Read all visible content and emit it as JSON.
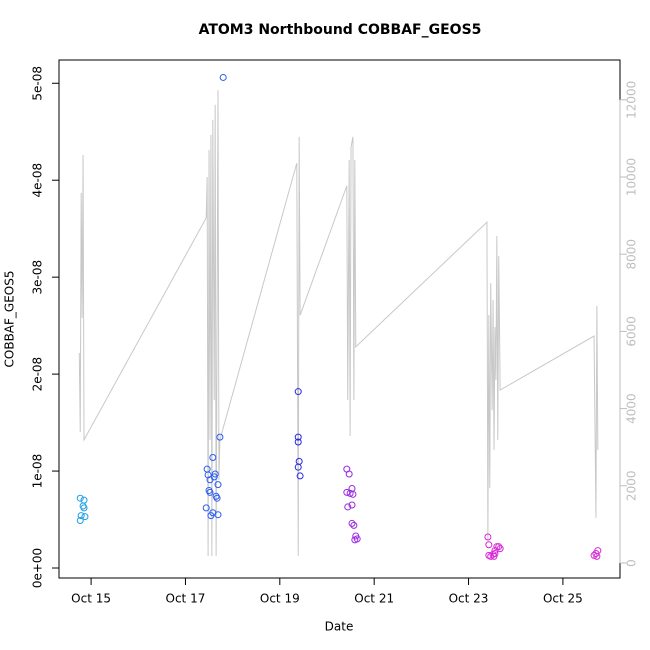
{
  "chart_data": {
    "type": "scatter",
    "title": "ATOM3 Northbound COBBAF_GEOS5",
    "xlabel": "Date",
    "ylabel": "COBBAF_GEOS5",
    "xlim": [
      14.32,
      26.21
    ],
    "xticks": [
      {
        "value": 15,
        "label": "Oct 15"
      },
      {
        "value": 17,
        "label": "Oct 17"
      },
      {
        "value": 19,
        "label": "Oct 19"
      },
      {
        "value": 21,
        "label": "Oct 21"
      },
      {
        "value": 23,
        "label": "Oct 23"
      },
      {
        "value": 25,
        "label": "Oct 25"
      }
    ],
    "ylim": [
      -1.03e-09,
      5.24e-08
    ],
    "yticks": [
      {
        "value": 0,
        "label": "0e+00"
      },
      {
        "value": 1e-08,
        "label": "1e-08"
      },
      {
        "value": 2e-08,
        "label": "2e-08"
      },
      {
        "value": 3e-08,
        "label": "3e-08"
      },
      {
        "value": 4e-08,
        "label": "4e-08"
      },
      {
        "value": 5e-08,
        "label": "5e-08"
      }
    ],
    "y2lim": [
      -389,
      13031
    ],
    "y2ticks": [
      0,
      2000,
      4000,
      6000,
      8000,
      10000,
      12000
    ],
    "y2color": "#bebebe",
    "series": [
      {
        "type": "line",
        "axis": "y2",
        "color": "#c8c8c8",
        "x": [
          14.75,
          14.77,
          14.79,
          14.81,
          14.83,
          14.85,
          17.44,
          17.46,
          17.48,
          17.5,
          17.52,
          17.54,
          17.56,
          17.58,
          17.61,
          17.63,
          17.65,
          17.69,
          17.71,
          17.73,
          19.36,
          19.39,
          19.41,
          19.43,
          20.42,
          20.44,
          20.47,
          20.49,
          20.51,
          20.55,
          20.57,
          20.59,
          20.61,
          23.39,
          23.41,
          23.43,
          23.45,
          23.47,
          23.5,
          23.52,
          23.54,
          23.56,
          23.58,
          23.6,
          23.62,
          23.64,
          23.67,
          25.66,
          25.7,
          25.72,
          25.74
        ],
        "values": [
          5440,
          3390,
          9590,
          6350,
          10570,
          3190,
          8940,
          10000,
          180,
          10700,
          3190,
          11090,
          180,
          11480,
          4220,
          11870,
          180,
          12250,
          2150,
          3190,
          10360,
          180,
          11040,
          6420,
          9770,
          4220,
          10440,
          3290,
          10780,
          11040,
          4220,
          10440,
          5600,
          8830,
          600,
          6420,
          1940,
          7250,
          3960,
          6810,
          2930,
          6110,
          4740,
          8470,
          3190,
          7950,
          4480,
          5880,
          1170,
          6660,
          2930
        ]
      },
      {
        "color": "#1ea0e6",
        "x": [
          14.77,
          14.79,
          14.83,
          14.85,
          14.87,
          14.77,
          14.85
        ],
        "values": [
          7.2e-09,
          5.4e-09,
          6.4e-09,
          7e-09,
          5.3e-09,
          4.9e-09,
          6.2e-09
        ]
      },
      {
        "color": "#2a5cf0",
        "x": [
          17.46,
          17.48,
          17.52,
          17.58,
          17.61,
          17.63,
          17.65,
          17.67,
          17.69,
          17.73,
          17.8,
          17.44,
          17.54,
          17.58,
          17.69,
          17.52,
          17.5
        ],
        "values": [
          1.02e-08,
          9.6e-09,
          9.1e-09,
          1.14e-08,
          9.4e-09,
          9.7e-09,
          7.4e-09,
          7.2e-09,
          8.6e-09,
          1.35e-08,
          5.06e-08,
          6.2e-09,
          5.4e-09,
          5.7e-09,
          5.5e-09,
          7.8e-09,
          8e-09
        ]
      },
      {
        "color": "#2828e0",
        "x": [
          19.39,
          19.39,
          19.39,
          19.41,
          19.39,
          19.43
        ],
        "values": [
          1.82e-08,
          1.35e-08,
          1.3e-08,
          1.1e-08,
          1.04e-08,
          9.5e-09
        ]
      },
      {
        "color": "#9a28e0",
        "x": [
          20.42,
          20.47,
          20.42,
          20.49,
          20.53,
          20.55,
          20.44,
          20.53,
          20.53,
          20.57,
          20.61,
          20.64,
          20.59
        ],
        "values": [
          1.02e-08,
          9.7e-09,
          7.8e-09,
          7.7e-09,
          8.2e-09,
          7.6e-09,
          6.3e-09,
          6.5e-09,
          4.6e-09,
          4.4e-09,
          3.3e-09,
          3e-09,
          2.9e-09
        ]
      },
      {
        "color": "#d828d8",
        "x": [
          23.41,
          23.43,
          23.43,
          23.47,
          23.52,
          23.56,
          23.54,
          23.6,
          23.64,
          23.67,
          23.56,
          25.7,
          25.72,
          25.74,
          25.66
        ],
        "values": [
          3.2e-09,
          2.4e-09,
          1.3e-09,
          1.2e-09,
          1.4e-09,
          1.8e-09,
          1.2e-09,
          2.2e-09,
          2.2e-09,
          2e-09,
          1.5e-09,
          1.5e-09,
          1.2e-09,
          1.8e-09,
          1.3e-09
        ]
      }
    ]
  }
}
